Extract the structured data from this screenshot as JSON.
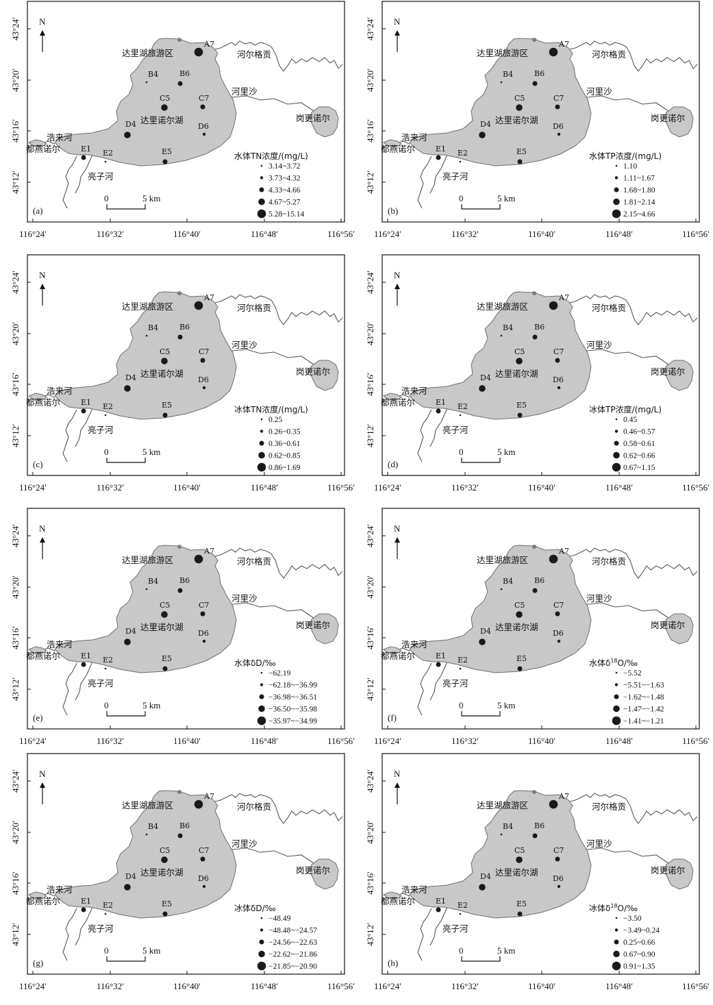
{
  "x_ticks": [
    "116°24′",
    "116°32′",
    "116°40′",
    "116°48′",
    "116°56′"
  ],
  "y_ticks": [
    "43°24′",
    "43°20′",
    "43°16′",
    "43°12′"
  ],
  "north_label": "N",
  "scale_zero": "0",
  "scale_label": "5 km",
  "places": {
    "tourist_area": "达里湖旅游区",
    "hergegong": "河尔格贡",
    "helisha": "河里沙",
    "gangengnur": "岗更诺尔",
    "dalinur": "达里诺尔湖",
    "haolaihe": "浩来河",
    "duyannur": "都燕诺尔",
    "liangzihe": "亮子河"
  },
  "sites": [
    "A7",
    "B4",
    "B6",
    "C5",
    "C7",
    "D4",
    "D6",
    "E1",
    "E2",
    "E5"
  ],
  "panels": [
    {
      "tag": "(a)",
      "legend_title": "水体TN浓度/(mg/L)",
      "classes": [
        "3.14~3.72",
        "3.73~4.32",
        "4.33~4.66",
        "4.67~5.27",
        "5.28~15.14"
      ],
      "site_class": {
        "A7": 5,
        "B4": 1,
        "B6": 3,
        "C5": 4,
        "C7": 3,
        "D4": 4,
        "D6": 2,
        "E1": 3,
        "E2": 1,
        "E5": 3
      }
    },
    {
      "tag": "(b)",
      "legend_title": "水体TP浓度/(mg/L)",
      "classes": [
        "1.10",
        "1.11~1.67",
        "1.68~1.80",
        "1.81~2.14",
        "2.15~4.66"
      ],
      "site_class": {
        "A7": 5,
        "B4": 1,
        "B6": 3,
        "C5": 4,
        "C7": 3,
        "D4": 4,
        "D6": 2,
        "E1": 3,
        "E2": 1,
        "E5": 3
      }
    },
    {
      "tag": "(c)",
      "legend_title": "冰体TN浓度/(mg/L)",
      "classes": [
        "0.25",
        "0.26~0.35",
        "0.36~0.61",
        "0.62~0.85",
        "0.86~1.69"
      ],
      "site_class": {
        "A7": 5,
        "B4": 1,
        "B6": 3,
        "C5": 4,
        "C7": 3,
        "D4": 4,
        "D6": 2,
        "E1": 3,
        "E2": 1,
        "E5": 3
      }
    },
    {
      "tag": "(d)",
      "legend_title": "冰体TP浓度/(mg/L)",
      "classes": [
        "0.45",
        "0.46~0.57",
        "0.58~0.61",
        "0.62~0.66",
        "0.67~1.15"
      ],
      "site_class": {
        "A7": 5,
        "B4": 1,
        "B6": 3,
        "C5": 4,
        "C7": 3,
        "D4": 4,
        "D6": 2,
        "E1": 3,
        "E2": 1,
        "E5": 3
      }
    },
    {
      "tag": "(e)",
      "legend_title": "水体δD/‰",
      "classes": [
        "−62.19",
        "−62.18~−36.99",
        "−36.98~−36.51",
        "−36.50~−35.98",
        "−35.97~−34.99"
      ],
      "site_class": {
        "A7": 5,
        "B4": 1,
        "B6": 3,
        "C5": 4,
        "C7": 3,
        "D4": 4,
        "D6": 2,
        "E1": 3,
        "E2": 1,
        "E5": 3
      }
    },
    {
      "tag": "(f)",
      "legend_title": "水体δ18O/‰",
      "classes": [
        "−5.52",
        "−5.51~−1.63",
        "−1.62~−1.48",
        "−1.47~−1.42",
        "−1.41~−1.21"
      ],
      "site_class": {
        "A7": 5,
        "B4": 1,
        "B6": 3,
        "C5": 4,
        "C7": 3,
        "D4": 4,
        "D6": 2,
        "E1": 3,
        "E2": 1,
        "E5": 3
      }
    },
    {
      "tag": "(g)",
      "legend_title": "冰体δD/‰",
      "classes": [
        "−48.49",
        "−48.48~−24.57",
        "−24.56~−22.63",
        "−22.62~−21.86",
        "−21.85~−20.90"
      ],
      "site_class": {
        "A7": 5,
        "B4": 1,
        "B6": 3,
        "C5": 4,
        "C7": 3,
        "D4": 4,
        "D6": 2,
        "E1": 3,
        "E2": 1,
        "E5": 3
      }
    },
    {
      "tag": "(h)",
      "legend_title": "冰体δ18O/‰",
      "classes": [
        "−3.50",
        "−3.49~0.24",
        "0.25~0.66",
        "0.67~0.90",
        "0.91~1.35"
      ],
      "site_class": {
        "A7": 5,
        "B4": 1,
        "B6": 3,
        "C5": 4,
        "C7": 3,
        "D4": 4,
        "D6": 2,
        "E1": 3,
        "E2": 1,
        "E5": 3
      }
    }
  ]
}
